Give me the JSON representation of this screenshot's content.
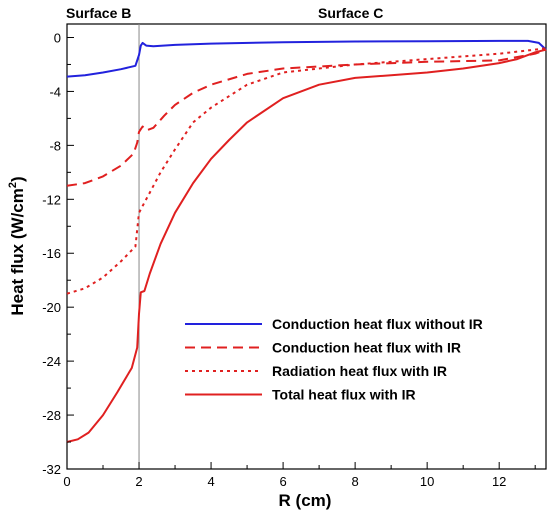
{
  "chart_data": {
    "type": "line",
    "xlabel": "R (cm)",
    "ylabel": "Heat flux (W/cm²)",
    "ylabel_main": "Heat flux (W/cm",
    "ylabel_sup": "2",
    "ylabel_end": ")",
    "xlim": [
      0,
      13.3
    ],
    "ylim": [
      -32,
      1
    ],
    "xticks": [
      0,
      2,
      4,
      6,
      8,
      10,
      12
    ],
    "yticks": [
      0,
      -4,
      -8,
      -12,
      -16,
      -20,
      -24,
      -28,
      -32
    ],
    "grid": false,
    "legend_position": "bottom-right",
    "annotations": {
      "surface_b": "Surface B",
      "surface_c": "Surface C",
      "divider_x": 2
    },
    "series": [
      {
        "name": "Conduction heat flux without IR",
        "color": "#2222dd",
        "dash": "solid",
        "points": [
          [
            0,
            -2.9
          ],
          [
            0.5,
            -2.8
          ],
          [
            1.0,
            -2.6
          ],
          [
            1.5,
            -2.35
          ],
          [
            1.9,
            -2.1
          ],
          [
            2.0,
            -1.3
          ],
          [
            2.05,
            -0.6
          ],
          [
            2.1,
            -0.4
          ],
          [
            2.2,
            -0.6
          ],
          [
            2.4,
            -0.65
          ],
          [
            3,
            -0.55
          ],
          [
            4,
            -0.45
          ],
          [
            6,
            -0.35
          ],
          [
            8,
            -0.3
          ],
          [
            10,
            -0.28
          ],
          [
            12,
            -0.25
          ],
          [
            12.8,
            -0.25
          ],
          [
            13.1,
            -0.4
          ],
          [
            13.3,
            -0.9
          ]
        ]
      },
      {
        "name": "Conduction heat flux with IR",
        "color": "#e02020",
        "dash": "dashed",
        "points": [
          [
            0,
            -11
          ],
          [
            0.5,
            -10.8
          ],
          [
            1.0,
            -10.3
          ],
          [
            1.5,
            -9.5
          ],
          [
            1.85,
            -8.6
          ],
          [
            1.95,
            -7.8
          ],
          [
            2.0,
            -7.0
          ],
          [
            2.1,
            -6.6
          ],
          [
            2.2,
            -6.9
          ],
          [
            2.4,
            -6.7
          ],
          [
            2.7,
            -5.8
          ],
          [
            3,
            -5.0
          ],
          [
            3.5,
            -4.1
          ],
          [
            4,
            -3.5
          ],
          [
            5,
            -2.7
          ],
          [
            6,
            -2.3
          ],
          [
            8,
            -2.0
          ],
          [
            10,
            -1.8
          ],
          [
            12,
            -1.7
          ],
          [
            13,
            -1.2
          ],
          [
            13.3,
            -0.9
          ]
        ]
      },
      {
        "name": "Radiation heat flux with IR",
        "color": "#e02020",
        "dash": "dotted",
        "points": [
          [
            0,
            -19
          ],
          [
            0.5,
            -18.6
          ],
          [
            1.0,
            -17.8
          ],
          [
            1.5,
            -16.6
          ],
          [
            1.9,
            -15.5
          ],
          [
            2.0,
            -13.0
          ],
          [
            2.1,
            -12.5
          ],
          [
            2.3,
            -11.5
          ],
          [
            2.6,
            -10.0
          ],
          [
            3,
            -8.3
          ],
          [
            3.5,
            -6.3
          ],
          [
            4,
            -5.2
          ],
          [
            5,
            -3.5
          ],
          [
            6,
            -2.6
          ],
          [
            8,
            -2.0
          ],
          [
            10,
            -1.6
          ],
          [
            12,
            -1.2
          ],
          [
            13,
            -0.9
          ],
          [
            13.3,
            -0.8
          ]
        ]
      },
      {
        "name": "Total heat flux with IR",
        "color": "#e02020",
        "dash": "solid",
        "points": [
          [
            0,
            -30
          ],
          [
            0.3,
            -29.8
          ],
          [
            0.6,
            -29.3
          ],
          [
            1.0,
            -28.0
          ],
          [
            1.4,
            -26.3
          ],
          [
            1.8,
            -24.5
          ],
          [
            1.95,
            -23.0
          ],
          [
            2.0,
            -20.5
          ],
          [
            2.05,
            -18.9
          ],
          [
            2.15,
            -18.8
          ],
          [
            2.3,
            -17.5
          ],
          [
            2.6,
            -15.3
          ],
          [
            3,
            -13.0
          ],
          [
            3.5,
            -10.8
          ],
          [
            4,
            -9.0
          ],
          [
            4.5,
            -7.6
          ],
          [
            5,
            -6.3
          ],
          [
            6,
            -4.5
          ],
          [
            7,
            -3.5
          ],
          [
            8,
            -3.0
          ],
          [
            9,
            -2.8
          ],
          [
            10,
            -2.6
          ],
          [
            11,
            -2.3
          ],
          [
            12,
            -1.9
          ],
          [
            12.5,
            -1.6
          ],
          [
            13,
            -1.1
          ],
          [
            13.3,
            -0.9
          ]
        ]
      }
    ]
  }
}
